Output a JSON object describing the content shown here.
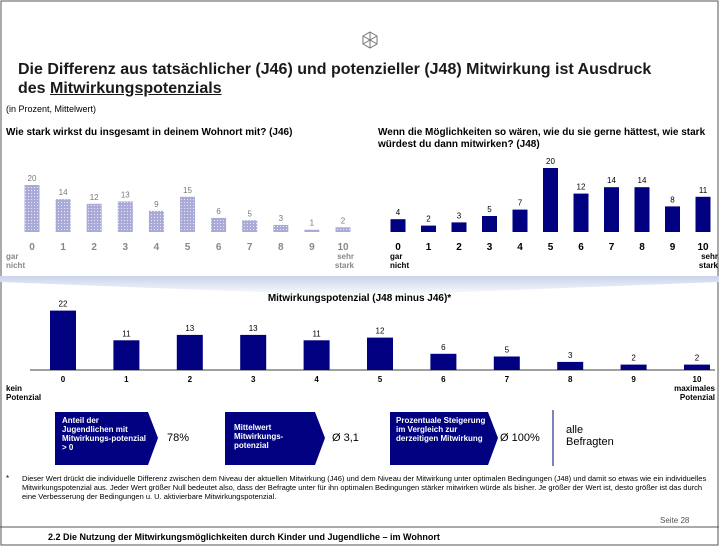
{
  "title_pre": "Die Differenz aus tatsächlicher (J46) und potenzieller (J48) Mitwirkung ist Ausdruck des ",
  "title_underlined": "Mitwirkungspotenzials",
  "subtitle": "(in Prozent, Mittelwert)",
  "chart_data": [
    {
      "type": "bar",
      "title": "Wie stark wirkst du insgesamt in deinem Wohnort mit? (J46)",
      "categories": [
        "0",
        "1",
        "2",
        "3",
        "4",
        "5",
        "6",
        "7",
        "8",
        "9",
        "10"
      ],
      "values": [
        20,
        14,
        12,
        13,
        9,
        15,
        6,
        5,
        3,
        1,
        2
      ],
      "color": "#a9a9d8",
      "low_label": "gar nicht",
      "high_label": "sehr stark"
    },
    {
      "type": "bar",
      "title": "Wenn die Möglichkeiten so wären, wie du sie gerne hättest, wie stark würdest du dann mitwirken? (J48)",
      "categories": [
        "0",
        "1",
        "2",
        "3",
        "4",
        "5",
        "6",
        "7",
        "8",
        "9",
        "10"
      ],
      "values": [
        4,
        2,
        3,
        5,
        7,
        20,
        12,
        14,
        14,
        8,
        11
      ],
      "color": "#000080",
      "low_label": "gar nicht",
      "high_label": "sehr stark"
    },
    {
      "type": "bar",
      "title": "Mitwirkungspotenzial (J48 minus J46)*",
      "categories": [
        "0",
        "1",
        "2",
        "3",
        "4",
        "5",
        "6",
        "7",
        "8",
        "9",
        "10"
      ],
      "values": [
        22,
        11,
        13,
        13,
        11,
        12,
        6,
        5,
        3,
        2,
        2
      ],
      "color": "#000080",
      "low_label": "kein Potenzial",
      "high_label": "maximales Potenzial"
    }
  ],
  "stats": [
    {
      "label": "Anteil der Jugendlichen mit Mitwirkungs-potenzial > 0",
      "value": "78%"
    },
    {
      "label": "Mittelwert Mitwirkungs-potenzial",
      "value": "Ø 3,1"
    },
    {
      "label": "Prozentuale Steigerung im Vergleich zur derzeitigen Mitwirkung",
      "value": "Ø 100%"
    }
  ],
  "group": "alle Befragten",
  "footnote_mark": "*",
  "footnote": "Dieser Wert drückt die individuelle Differenz zwischen dem Niveau der aktuellen Mitwirkung (J46) und dem Niveau der Mitwirkung unter optimalen Bedingungen (J48) und damit so etwas wie ein individuelles Mitwirkungspotenzial aus. Jeder Wert größer Null bedeutet also, dass der Befragte unter für ihn optimalen Bedingungen stärker mitwirken würde als bisher. Je größer der Wert ist, desto größer ist das durch eine Verbesserung der Bedingungen u. U. aktivierbare Mitwirkungspotenzial.",
  "page": "Seite 28",
  "footer": "2.2 Die Nutzung der Mitwirkungsmöglichkeiten durch Kinder und Jugendliche – im Wohnort"
}
